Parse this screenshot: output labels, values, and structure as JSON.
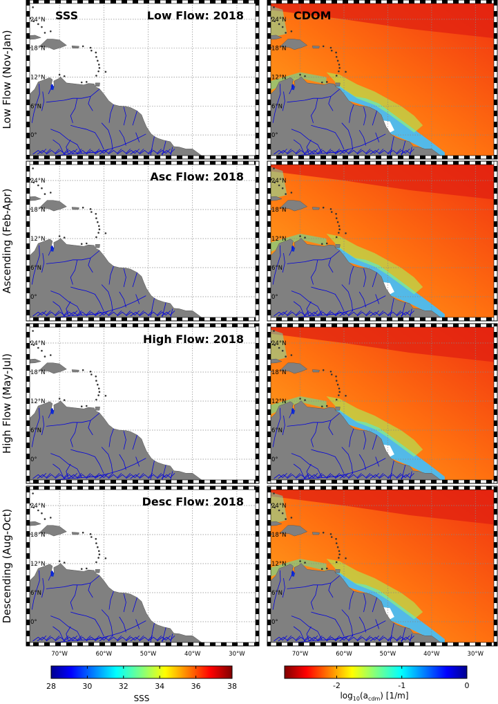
{
  "figure": {
    "left_header": "SSS",
    "right_header": "CDOM",
    "rows": [
      {
        "row_label": "Low Flow (Nov-Jan)",
        "panel_title": "Low Flow: 2018"
      },
      {
        "row_label": "Ascending (Feb-Apr)",
        "panel_title": "Asc Flow: 2018"
      },
      {
        "row_label": "High Flow (May-Jul)",
        "panel_title": "High Flow: 2018"
      },
      {
        "row_label": "Descending (Aug-Oct)",
        "panel_title": "Desc Flow: 2018"
      }
    ],
    "lat_ticks": [
      "24°N",
      "18°N",
      "12°N",
      "6°N",
      "0°"
    ],
    "lon_ticks": [
      "70°W",
      "60°W",
      "50°W",
      "40°W",
      "30°W"
    ],
    "land_color": "#808080",
    "river_color": "#0000dd",
    "sss_colorbar": {
      "label": "SSS",
      "min": 28,
      "max": 38,
      "ticks": [
        "28",
        "30",
        "32",
        "34",
        "36",
        "38"
      ],
      "colormap": "jet"
    },
    "cdom_colorbar": {
      "label": "log10(acdm) [1/m]",
      "label_main": "log",
      "label_sub1": "10",
      "label_mid": "(a",
      "label_sub2": "cdm",
      "label_end": ") [1/m]",
      "min": -2.8,
      "max": 0,
      "ticks": [
        "-2",
        "-1",
        "0"
      ],
      "tick_values": [
        -2,
        -1,
        0
      ],
      "colormap": "reversed jet"
    }
  }
}
